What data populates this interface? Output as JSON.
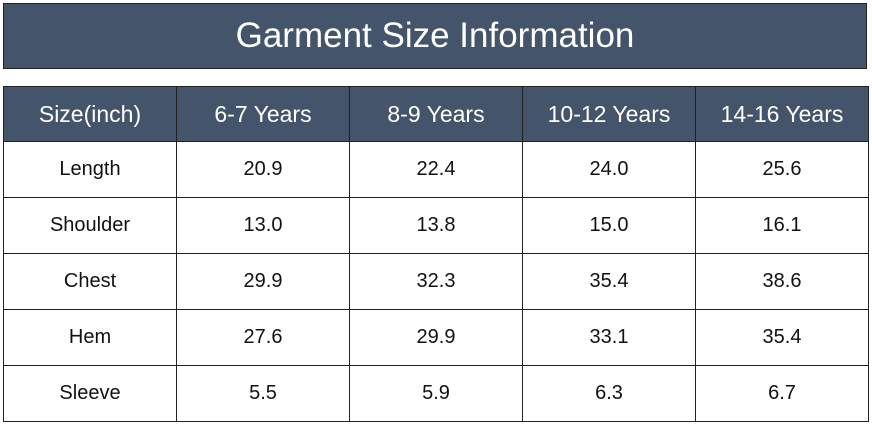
{
  "title": "Garment Size Information",
  "table": {
    "header": [
      "Size(inch)",
      "6-7 Years",
      "8-9 Years",
      "10-12 Years",
      "14-16 Years"
    ],
    "rows": [
      [
        "Length",
        "20.9",
        "22.4",
        "24.0",
        "25.6"
      ],
      [
        "Shoulder",
        "13.0",
        "13.8",
        "15.0",
        "16.1"
      ],
      [
        "Chest",
        "29.9",
        "32.3",
        "35.4",
        "38.6"
      ],
      [
        "Hem",
        "27.6",
        "29.9",
        "33.1",
        "35.4"
      ],
      [
        "Sleeve",
        "5.5",
        "5.9",
        "6.3",
        "6.7"
      ]
    ]
  }
}
